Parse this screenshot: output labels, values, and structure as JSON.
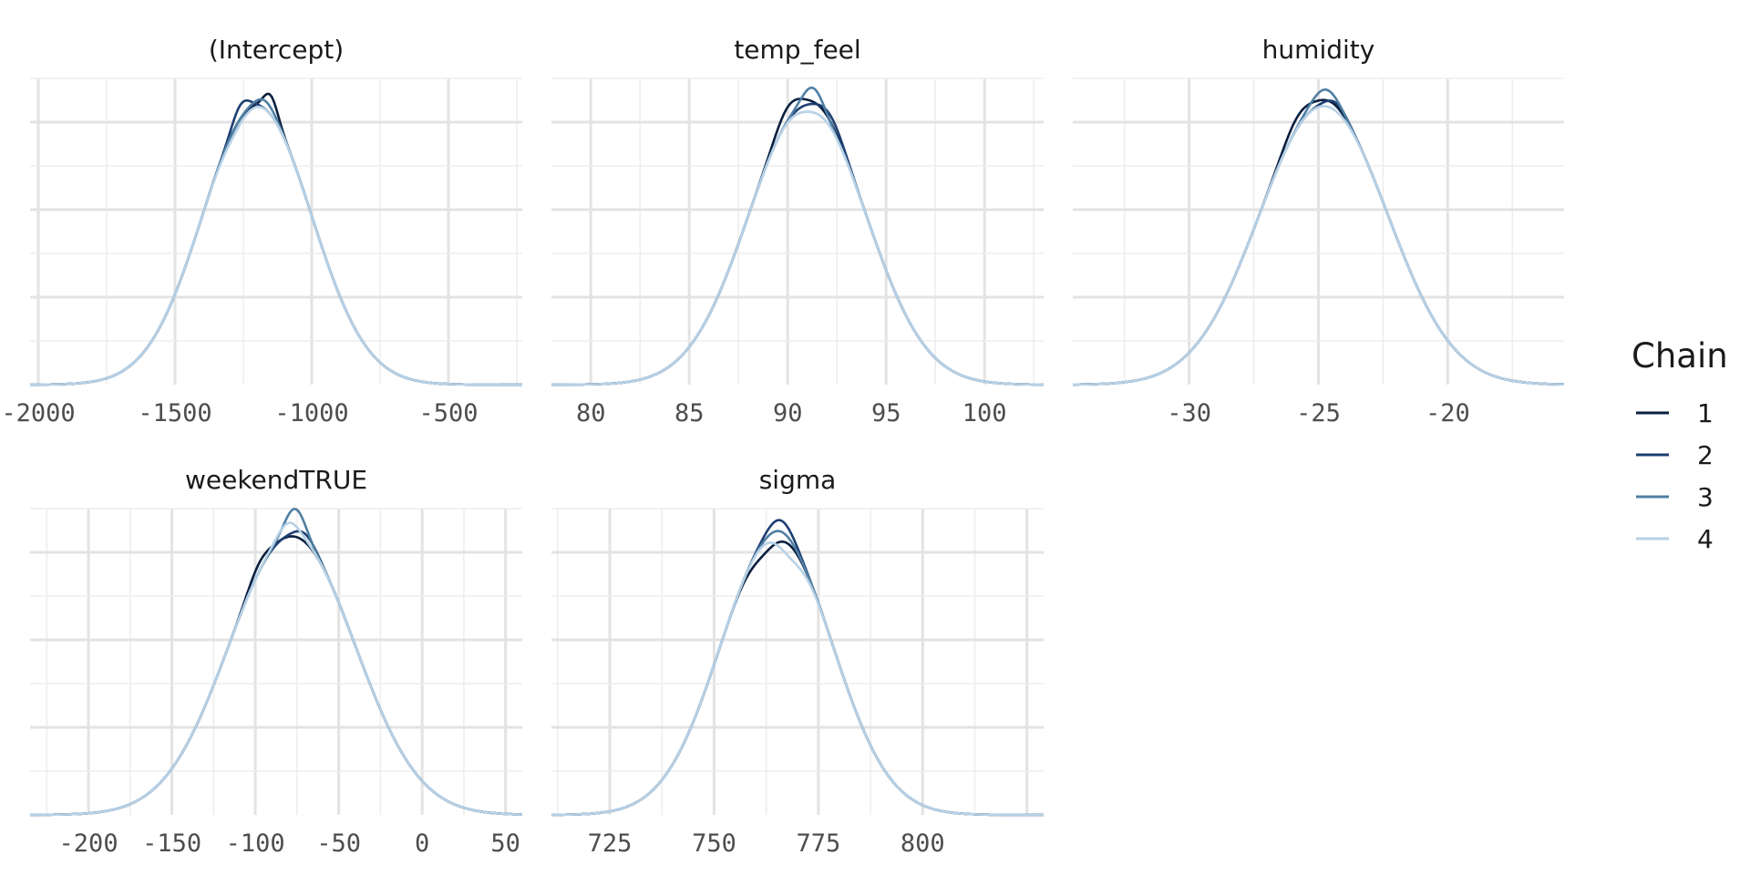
{
  "chart_data": {
    "type": "line",
    "legend": {
      "title": "Chain",
      "position": "right",
      "items": [
        {
          "label": "1",
          "color": "#0b1f3f"
        },
        {
          "label": "2",
          "color": "#1d3f72"
        },
        {
          "label": "3",
          "color": "#4f7fa3"
        },
        {
          "label": "4",
          "color": "#b7d1e6"
        }
      ]
    },
    "grid": true,
    "panels": [
      {
        "title": "(Intercept)",
        "xlim": [
          -2030,
          -230
        ],
        "ticks": [
          -2000,
          -1500,
          -1000,
          -500
        ],
        "tick_labels": [
          "-2000",
          "-1500",
          "-1000",
          "-500"
        ],
        "mean": -1200,
        "sd": 200,
        "series": [
          {
            "name": "1",
            "bumps": [
              [
                -1150,
                25,
                0.07
              ]
            ]
          },
          {
            "name": "2",
            "bumps": [
              [
                -1260,
                30,
                0.05
              ]
            ]
          },
          {
            "name": "3",
            "bumps": [
              [
                -1170,
                35,
                0.03
              ]
            ]
          },
          {
            "name": "4",
            "bumps": [
              [
                -1280,
                40,
                -0.02
              ]
            ]
          }
        ]
      },
      {
        "title": "temp_feel",
        "xlim": [
          78,
          103
        ],
        "ticks": [
          80,
          85,
          90,
          95,
          100
        ],
        "tick_labels": [
          "80",
          "85",
          "90",
          "95",
          "100"
        ],
        "mean": 91,
        "sd": 3,
        "series": [
          {
            "name": "1",
            "bumps": [
              [
                90,
                0.6,
                0.05
              ],
              [
                91.8,
                0.7,
                0.02
              ]
            ]
          },
          {
            "name": "2",
            "bumps": [
              [
                92.2,
                0.6,
                0.04
              ]
            ]
          },
          {
            "name": "3",
            "bumps": [
              [
                91.3,
                0.5,
                0.07
              ]
            ]
          },
          {
            "name": "4",
            "bumps": [
              [
                91,
                0.6,
                -0.02
              ]
            ]
          }
        ]
      },
      {
        "title": "humidity",
        "xlim": [
          -34.5,
          -15.5
        ],
        "ticks": [
          -30,
          -25,
          -20
        ],
        "tick_labels": [
          "-30",
          "-25",
          "-20"
        ],
        "mean": -24.8,
        "sd": 2.5,
        "series": [
          {
            "name": "1",
            "bumps": [
              [
                -25.8,
                0.5,
                0.04
              ],
              [
                -24.5,
                0.5,
                0.02
              ]
            ]
          },
          {
            "name": "2",
            "bumps": [
              [
                -24.3,
                0.4,
                0.03
              ]
            ]
          },
          {
            "name": "3",
            "bumps": [
              [
                -24.7,
                0.5,
                0.06
              ]
            ]
          },
          {
            "name": "4",
            "bumps": [
              [
                -25.3,
                0.6,
                0.0
              ]
            ]
          }
        ]
      },
      {
        "title": "weekendTRUE",
        "xlim": [
          -235,
          60
        ],
        "ticks": [
          -200,
          -150,
          -100,
          -50,
          0,
          50
        ],
        "tick_labels": [
          "-200",
          "-150",
          "-100",
          "-50",
          "0",
          "50"
        ],
        "mean": -78,
        "sd": 38,
        "series": [
          {
            "name": "1",
            "bumps": [
              [
                -98,
                6,
                0.03
              ]
            ]
          },
          {
            "name": "2",
            "bumps": [
              [
                -70,
                6,
                0.03
              ]
            ]
          },
          {
            "name": "3",
            "bumps": [
              [
                -76,
                6,
                0.1
              ]
            ]
          },
          {
            "name": "4",
            "bumps": [
              [
                -80,
                6,
                0.05
              ]
            ]
          }
        ]
      },
      {
        "title": "sigma",
        "xlim": [
          711,
          829
        ],
        "ticks": [
          725,
          750,
          775,
          800
        ],
        "tick_labels": [
          "725",
          "750",
          "775",
          "800"
        ],
        "mean": 765,
        "sd": 13.5,
        "series": [
          {
            "name": "1",
            "bumps": [
              [
                762,
                3,
                -0.04
              ]
            ]
          },
          {
            "name": "2",
            "bumps": [
              [
                766,
                3,
                0.06
              ]
            ]
          },
          {
            "name": "3",
            "bumps": [
              [
                766,
                3,
                0.02
              ]
            ]
          },
          {
            "name": "4",
            "bumps": [
              [
                768,
                3,
                -0.05
              ]
            ]
          }
        ]
      }
    ]
  }
}
